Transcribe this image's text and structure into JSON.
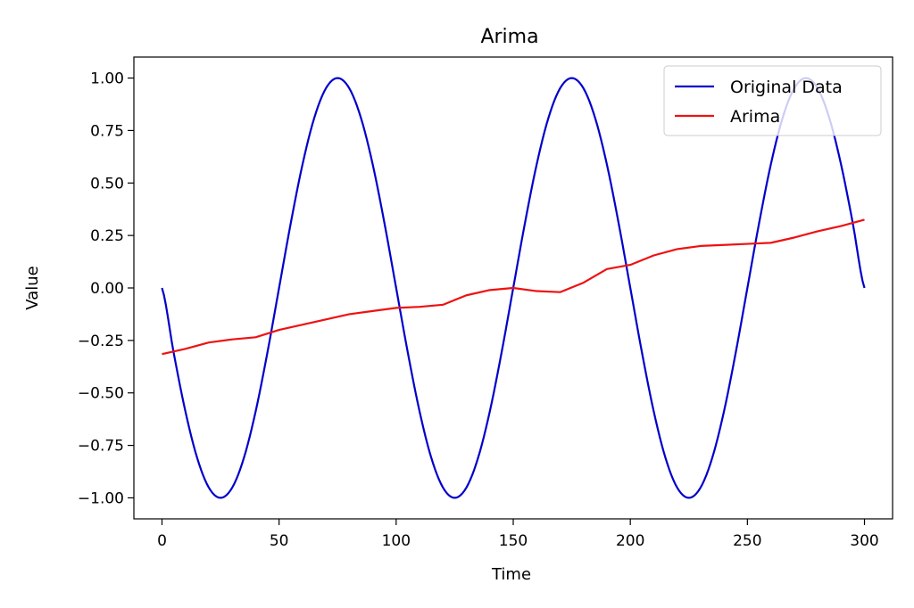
{
  "chart_data": {
    "type": "line",
    "title": "Arima",
    "xlabel": "Time",
    "ylabel": "Value",
    "xlim": [
      -12,
      312
    ],
    "ylim": [
      -1.1,
      1.1
    ],
    "xticks": [
      0,
      50,
      100,
      150,
      200,
      250,
      300
    ],
    "xtick_labels": [
      "0",
      "50",
      "100",
      "150",
      "200",
      "250",
      "300"
    ],
    "yticks": [
      1.0,
      0.75,
      0.5,
      0.25,
      0.0,
      -0.25,
      -0.5,
      -0.75,
      -1.0
    ],
    "ytick_labels": [
      "1.00",
      "0.75",
      "0.50",
      "0.25",
      "0.00",
      "−0.25",
      "−0.50",
      "−0.75",
      "−1.00"
    ],
    "grid": false,
    "legend_position": "top-right",
    "series": [
      {
        "name": "Original Data",
        "color": "#0000cc",
        "x": [
          0,
          5,
          10,
          15,
          20,
          25,
          30,
          35,
          40,
          45,
          50,
          55,
          60,
          65,
          70,
          75,
          80,
          85,
          90,
          95,
          100,
          105,
          110,
          115,
          120,
          125,
          130,
          135,
          140,
          145,
          150,
          155,
          160,
          165,
          170,
          175,
          180,
          185,
          190,
          195,
          200,
          205,
          210,
          215,
          220,
          225,
          230,
          235,
          240,
          245,
          250,
          255,
          260,
          265,
          270,
          275,
          280,
          285,
          290,
          295,
          300
        ],
        "y": [
          0,
          -0.309,
          -0.588,
          -0.809,
          -0.951,
          -1.0,
          -0.951,
          -0.809,
          -0.588,
          -0.309,
          0,
          0.309,
          0.588,
          0.809,
          0.951,
          1.0,
          0.951,
          0.809,
          0.588,
          0.309,
          0,
          -0.309,
          -0.588,
          -0.809,
          -0.951,
          -1.0,
          -0.951,
          -0.809,
          -0.588,
          -0.309,
          0,
          0.309,
          0.588,
          0.809,
          0.951,
          1.0,
          0.951,
          0.809,
          0.588,
          0.309,
          0,
          -0.309,
          -0.588,
          -0.809,
          -0.951,
          -1.0,
          -0.951,
          -0.809,
          -0.588,
          -0.309,
          0,
          0.309,
          0.588,
          0.809,
          0.951,
          1.0,
          0.951,
          0.809,
          0.588,
          0.309,
          0
        ]
      },
      {
        "name": "Arima",
        "color": "#ee1111",
        "x": [
          0,
          10,
          20,
          30,
          40,
          50,
          60,
          70,
          80,
          90,
          100,
          110,
          120,
          130,
          140,
          150,
          160,
          170,
          180,
          190,
          200,
          210,
          220,
          230,
          240,
          250,
          260,
          270,
          280,
          290,
          300
        ],
        "y": [
          -0.315,
          -0.29,
          -0.26,
          -0.245,
          -0.235,
          -0.2,
          -0.175,
          -0.15,
          -0.125,
          -0.11,
          -0.095,
          -0.09,
          -0.08,
          -0.035,
          -0.01,
          0.0,
          -0.015,
          -0.02,
          0.025,
          0.09,
          0.11,
          0.155,
          0.185,
          0.2,
          0.205,
          0.21,
          0.215,
          0.24,
          0.27,
          0.295,
          0.325
        ]
      }
    ]
  }
}
